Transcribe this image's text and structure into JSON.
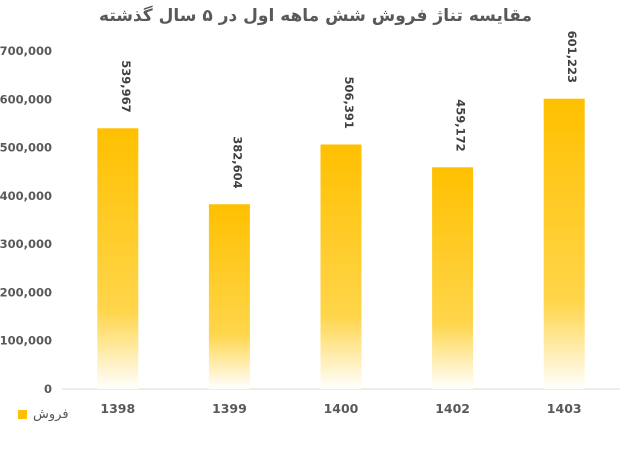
{
  "chart_data": {
    "type": "bar",
    "title": "مقایسه تناژ فروش شش ماهه اول در ۵ سال گذشته",
    "categories": [
      "1398",
      "1399",
      "1400",
      "1402",
      "1403"
    ],
    "series": [
      {
        "name": "فروش",
        "values": [
          539967,
          382604,
          506391,
          459172,
          601223
        ]
      }
    ],
    "data_labels": [
      "539,967",
      "382,604",
      "506,391",
      "459,172",
      "601,223"
    ],
    "y_ticks": [
      "0",
      "100,000",
      "200,000",
      "300,000",
      "400,000",
      "500,000",
      "600,000",
      "700,000"
    ],
    "ylim": [
      0,
      700000
    ],
    "grid": false,
    "legend": "bottom-left",
    "bar_color": "#FFC000"
  }
}
